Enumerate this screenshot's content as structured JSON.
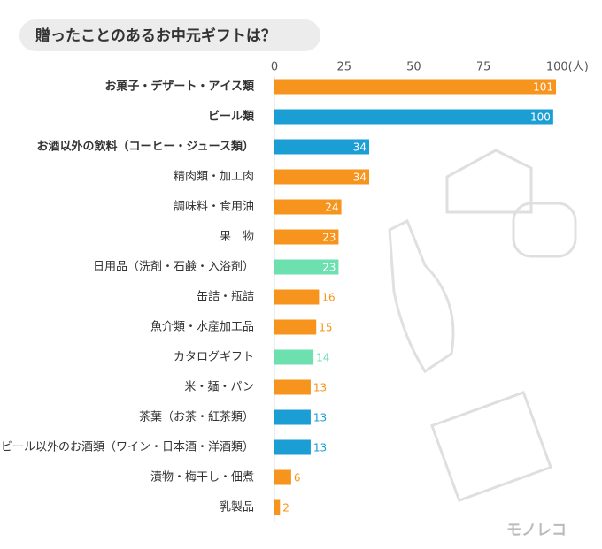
{
  "chart_data": {
    "type": "bar",
    "orientation": "horizontal",
    "title": "贈ったことのあるお中元ギフトは？",
    "brand": "モノレコ",
    "categories": [
      "お菓子・デザート・アイス類",
      "ビール類",
      "お酒以外の飲料（コーヒー・ジュース類）",
      "精肉類・加工肉",
      "調味料・食用油",
      "果　物",
      "日用品（洗剤・石鹸・入浴剤）",
      "缶詰・瓶詰",
      "魚介類・水産加工品",
      "カタログギフト",
      "米・麺・パン",
      "茶葉（お茶・紅茶類）",
      "ビール以外のお酒類（ワイン・日本酒・洋酒類）",
      "漬物・梅干し・佃煮",
      "乳製品"
    ],
    "values": [
      101,
      100,
      34,
      34,
      24,
      23,
      23,
      16,
      15,
      14,
      13,
      13,
      13,
      6,
      2
    ],
    "colors": [
      "#f7941d",
      "#1a9ed4",
      "#1a9ed4",
      "#f7941d",
      "#f7941d",
      "#f7941d",
      "#6de0b0",
      "#f7941d",
      "#f7941d",
      "#6de0b0",
      "#f7941d",
      "#1a9ed4",
      "#1a9ed4",
      "#f7941d",
      "#f7941d"
    ],
    "xlim": [
      0,
      101
    ],
    "xticks": [
      0,
      25,
      50,
      75,
      {
        "value": 100,
        "label": "100(人)"
      }
    ]
  }
}
